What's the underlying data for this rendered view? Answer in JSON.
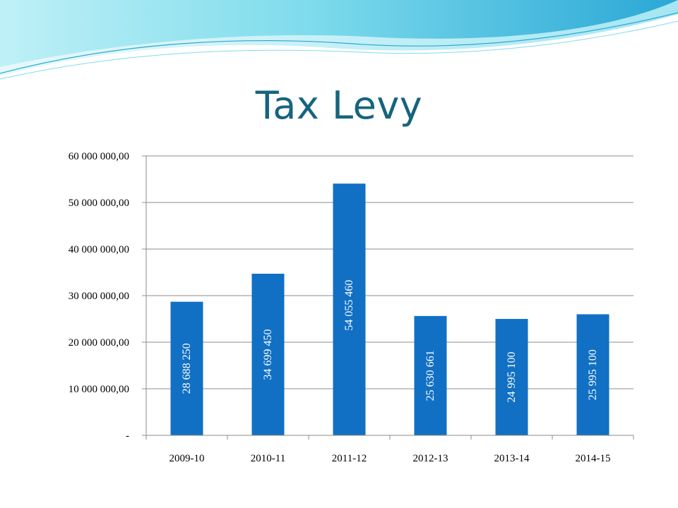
{
  "slide": {
    "title": "Tax Levy"
  },
  "colors": {
    "title": "#17647e",
    "bar": "#1170c4",
    "bar_label": "#ffffff",
    "gridline": "#8c8c8c",
    "axis_text": "#000000",
    "banner_light": "#bff0f7",
    "banner_mid": "#5fd3e6",
    "banner_deep": "#2aa7d6"
  },
  "chart_data": {
    "type": "bar",
    "categories": [
      "2009-10",
      "2010-11",
      "2011-12",
      "2012-13",
      "2013-14",
      "2014-15"
    ],
    "values": [
      28688250,
      34699450,
      54055460,
      25630661,
      24995100,
      25995100
    ],
    "data_labels": [
      "28 688 250",
      "34 699 450",
      "54 055 460",
      "25 630 661",
      "24 995 100",
      "25 995 100"
    ],
    "y_ticks": [
      0,
      10000000,
      20000000,
      30000000,
      40000000,
      50000000,
      60000000
    ],
    "y_tick_labels": [
      "-",
      "10 000 000,00",
      "20 000 000,00",
      "30 000 000,00",
      "40 000 000,00",
      "50 000 000,00",
      "60 000 000,00"
    ],
    "ylim": [
      0,
      60000000
    ],
    "grid": true,
    "legend": "none",
    "data_label_orientation": "vertical"
  }
}
